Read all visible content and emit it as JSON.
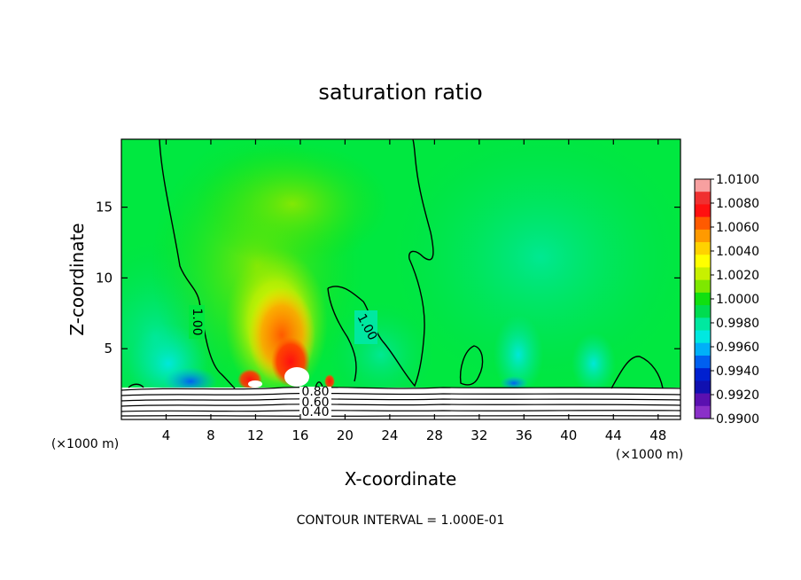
{
  "chart_data": {
    "type": "heatmap",
    "title": "saturation ratio",
    "xlabel": "X-coordinate",
    "ylabel": "Z-coordinate",
    "x_unit_left": "(×1000 m)",
    "x_unit_right": "(×1000 m)",
    "xlim": [
      0,
      50
    ],
    "ylim": [
      0,
      19.8
    ],
    "x_ticks": [
      4,
      8,
      12,
      16,
      20,
      24,
      28,
      32,
      36,
      40,
      44,
      48
    ],
    "x_tick_labels": [
      "4",
      "8",
      "12",
      "16",
      "20",
      "24",
      "28",
      "32",
      "36",
      "40",
      "44",
      "48"
    ],
    "y_ticks": [
      5,
      10,
      15
    ],
    "y_tick_labels": [
      "5",
      "10",
      "15"
    ],
    "grid": false,
    "colorbar": {
      "position": "right",
      "min": 0.99,
      "max": 1.01,
      "labels": [
        "1.0100",
        "1.0080",
        "1.0060",
        "1.0040",
        "1.0020",
        "1.0000",
        "0.9980",
        "0.9960",
        "0.9940",
        "0.9920",
        "0.9900"
      ],
      "colors": [
        "#f7a0a0",
        "#f03030",
        "#ff1010",
        "#ff5a00",
        "#ff9a00",
        "#ffd200",
        "#ffff00",
        "#c8f000",
        "#7ee800",
        "#10e010",
        "#00dc50",
        "#00e8a0",
        "#00e8e0",
        "#00b0f8",
        "#0060f0",
        "#0020d0",
        "#1010b0",
        "#5a10b0",
        "#8a30c8"
      ]
    },
    "contour_labels": [
      "1.00",
      "1.00",
      "0.80",
      "0.60",
      "0.40"
    ],
    "footer": "CONTOUR INTERVAL = 1.000E-01"
  }
}
